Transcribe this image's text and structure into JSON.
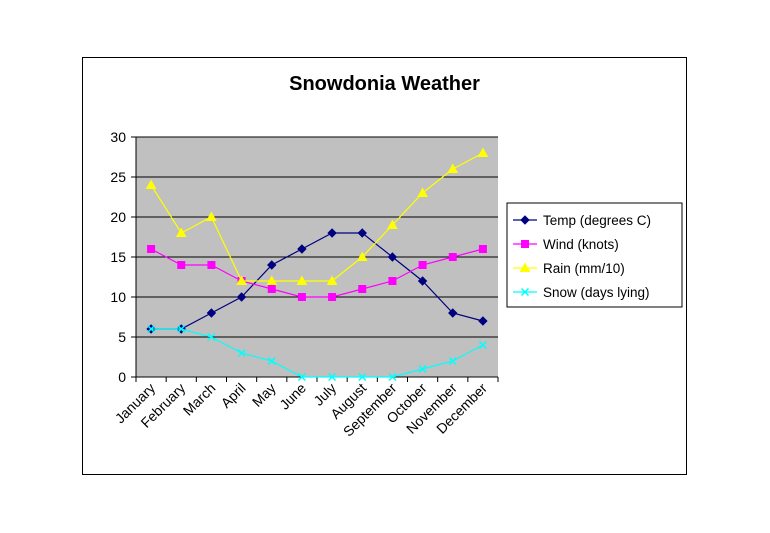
{
  "chart_data": {
    "type": "line",
    "title": "Snowdonia Weather",
    "xlabel": "",
    "ylabel": "",
    "categories": [
      "January",
      "February",
      "March",
      "April",
      "May",
      "June",
      "July",
      "August",
      "September",
      "October",
      "November",
      "December"
    ],
    "ylim": [
      0,
      30
    ],
    "yticks": [
      0,
      5,
      10,
      15,
      20,
      25,
      30
    ],
    "grid": true,
    "legend_position": "right",
    "plot_background": "#c0c0c0",
    "series": [
      {
        "name": "Temp (degrees C)",
        "color": "#000080",
        "marker": "diamond",
        "values": [
          6,
          6,
          8,
          10,
          14,
          16,
          18,
          18,
          15,
          12,
          8,
          7
        ]
      },
      {
        "name": "Wind (knots)",
        "color": "#ff00ff",
        "marker": "square",
        "values": [
          16,
          14,
          14,
          12,
          11,
          10,
          10,
          11,
          12,
          14,
          15,
          16
        ]
      },
      {
        "name": "Rain (mm/10)",
        "color": "#ffff00",
        "marker": "triangle",
        "values": [
          24,
          18,
          20,
          12,
          12,
          12,
          12,
          15,
          19,
          23,
          26,
          28
        ]
      },
      {
        "name": "Snow (days lying)",
        "color": "#00ffff",
        "marker": "x",
        "values": [
          6,
          6,
          5,
          3,
          2,
          0,
          0,
          0,
          0,
          1,
          2,
          4
        ]
      }
    ]
  }
}
